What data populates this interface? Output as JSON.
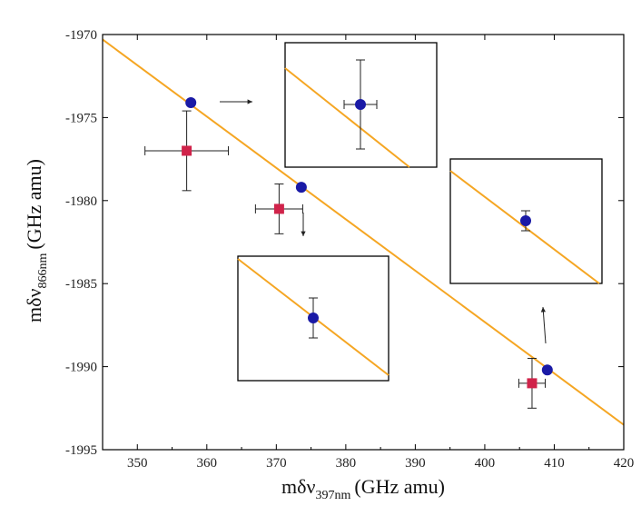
{
  "chart_data": {
    "type": "scatter",
    "title": "",
    "xlabel": {
      "main": "mδν",
      "sub": "397nm",
      "unit": "(GHz amu)"
    },
    "ylabel": {
      "main": "mδν",
      "sub": "866nm",
      "unit": "(GHz amu)"
    },
    "xlim": [
      345,
      420
    ],
    "ylim": [
      -1995,
      -1970
    ],
    "x_ticks": [
      350,
      360,
      370,
      380,
      390,
      400,
      410,
      420
    ],
    "x_tick_labels": [
      "350",
      "360",
      "370",
      "380",
      "390",
      "400",
      "410",
      "420"
    ],
    "y_ticks": [
      -1970,
      -1975,
      -1980,
      -1985,
      -1990,
      -1995
    ],
    "y_tick_labels": [
      "-1970",
      "-1975",
      "-1980",
      "-1985",
      "-1990",
      "-1995"
    ],
    "grid": false,
    "legend": "none",
    "fit_line": {
      "x": [
        345,
        420
      ],
      "y": [
        -1970.3,
        -1993.5
      ],
      "color": "#f5a623"
    },
    "series": [
      {
        "marker": "circle",
        "color": "#1a1aa6",
        "points": [
          {
            "x": 357.7,
            "y": -1974.1
          },
          {
            "x": 373.6,
            "y": -1979.2
          },
          {
            "x": 409.0,
            "y": -1990.2
          }
        ]
      },
      {
        "marker": "square",
        "color": "#d0234a",
        "points": [
          {
            "x": 357.1,
            "y": -1977.0,
            "xerr": 6.0,
            "yerr": 2.4
          },
          {
            "x": 370.4,
            "y": -1980.5,
            "xerr": 3.4,
            "yerr": 1.5
          },
          {
            "x": 406.8,
            "y": -1991.0,
            "xerr": 1.9,
            "yerr": 1.5
          }
        ]
      }
    ],
    "insets": [
      {
        "frame": [
          314,
          47,
          481,
          184
        ],
        "line": [
          [
            314,
            75
          ],
          [
            451,
            184
          ]
        ],
        "point": [
          397,
          115
        ],
        "xerr_px": 18,
        "yerr_px": 49
      },
      {
        "frame": [
          496,
          175,
          663,
          312
        ],
        "line": [
          [
            496,
            188
          ],
          [
            660,
            312
          ]
        ],
        "point": [
          579,
          243
        ],
        "xerr_px": 0,
        "yerr_px": 11
      },
      {
        "frame": [
          262,
          282,
          428,
          419
        ],
        "line": [
          [
            262,
            285
          ],
          [
            428,
            413
          ]
        ],
        "point": [
          345,
          350
        ],
        "xerr_px": 0,
        "yerr_px": 22
      }
    ],
    "arrows": [
      {
        "from": [
          242,
          112
        ],
        "to": [
          278,
          112
        ]
      },
      {
        "from": [
          334,
          234
        ],
        "to": [
          334,
          260
        ]
      },
      {
        "from": [
          601,
          378
        ],
        "to": [
          598,
          338
        ]
      }
    ]
  }
}
